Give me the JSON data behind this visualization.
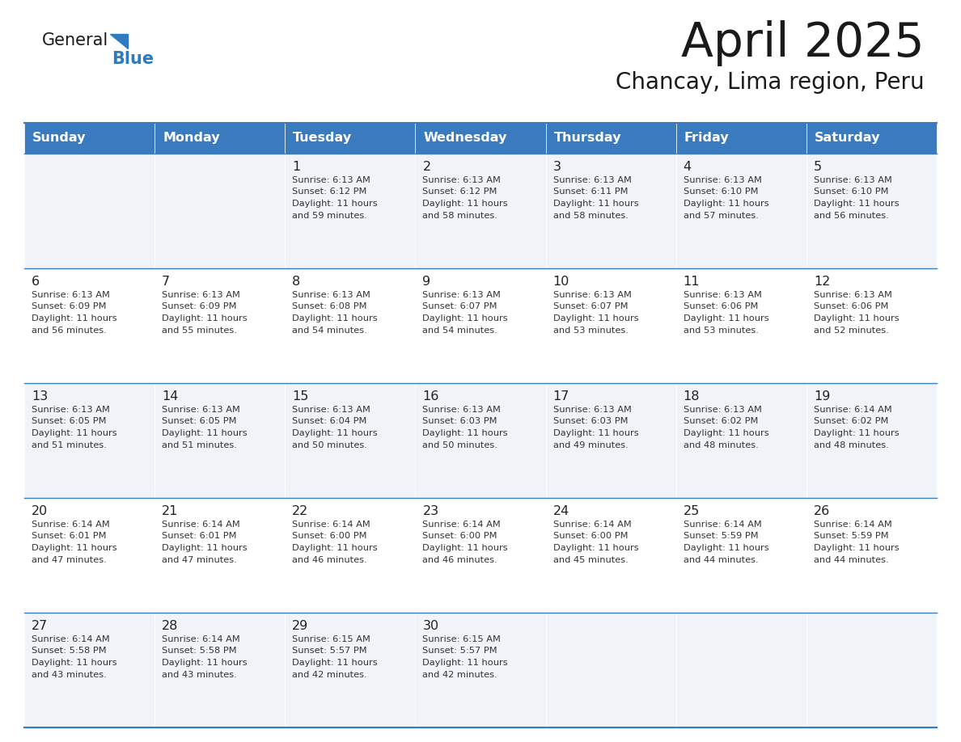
{
  "title": "April 2025",
  "subtitle": "Chancay, Lima region, Peru",
  "header_color": "#3a7bbf",
  "header_text_color": "#ffffff",
  "row_bg_even": "#f0f4f8",
  "row_bg_odd": "#ffffff",
  "border_color": "#3a7bbf",
  "text_color": "#333333",
  "day_headers": [
    "Sunday",
    "Monday",
    "Tuesday",
    "Wednesday",
    "Thursday",
    "Friday",
    "Saturday"
  ],
  "weeks": [
    [
      {
        "day": "",
        "sunrise": "",
        "sunset": "",
        "daylight": ""
      },
      {
        "day": "",
        "sunrise": "",
        "sunset": "",
        "daylight": ""
      },
      {
        "day": "1",
        "sunrise": "6:13 AM",
        "sunset": "6:12 PM",
        "daylight": "11 hours and 59 minutes."
      },
      {
        "day": "2",
        "sunrise": "6:13 AM",
        "sunset": "6:12 PM",
        "daylight": "11 hours and 58 minutes."
      },
      {
        "day": "3",
        "sunrise": "6:13 AM",
        "sunset": "6:11 PM",
        "daylight": "11 hours and 58 minutes."
      },
      {
        "day": "4",
        "sunrise": "6:13 AM",
        "sunset": "6:10 PM",
        "daylight": "11 hours and 57 minutes."
      },
      {
        "day": "5",
        "sunrise": "6:13 AM",
        "sunset": "6:10 PM",
        "daylight": "11 hours and 56 minutes."
      }
    ],
    [
      {
        "day": "6",
        "sunrise": "6:13 AM",
        "sunset": "6:09 PM",
        "daylight": "11 hours and 56 minutes."
      },
      {
        "day": "7",
        "sunrise": "6:13 AM",
        "sunset": "6:09 PM",
        "daylight": "11 hours and 55 minutes."
      },
      {
        "day": "8",
        "sunrise": "6:13 AM",
        "sunset": "6:08 PM",
        "daylight": "11 hours and 54 minutes."
      },
      {
        "day": "9",
        "sunrise": "6:13 AM",
        "sunset": "6:07 PM",
        "daylight": "11 hours and 54 minutes."
      },
      {
        "day": "10",
        "sunrise": "6:13 AM",
        "sunset": "6:07 PM",
        "daylight": "11 hours and 53 minutes."
      },
      {
        "day": "11",
        "sunrise": "6:13 AM",
        "sunset": "6:06 PM",
        "daylight": "11 hours and 53 minutes."
      },
      {
        "day": "12",
        "sunrise": "6:13 AM",
        "sunset": "6:06 PM",
        "daylight": "11 hours and 52 minutes."
      }
    ],
    [
      {
        "day": "13",
        "sunrise": "6:13 AM",
        "sunset": "6:05 PM",
        "daylight": "11 hours and 51 minutes."
      },
      {
        "day": "14",
        "sunrise": "6:13 AM",
        "sunset": "6:05 PM",
        "daylight": "11 hours and 51 minutes."
      },
      {
        "day": "15",
        "sunrise": "6:13 AM",
        "sunset": "6:04 PM",
        "daylight": "11 hours and 50 minutes."
      },
      {
        "day": "16",
        "sunrise": "6:13 AM",
        "sunset": "6:03 PM",
        "daylight": "11 hours and 50 minutes."
      },
      {
        "day": "17",
        "sunrise": "6:13 AM",
        "sunset": "6:03 PM",
        "daylight": "11 hours and 49 minutes."
      },
      {
        "day": "18",
        "sunrise": "6:13 AM",
        "sunset": "6:02 PM",
        "daylight": "11 hours and 48 minutes."
      },
      {
        "day": "19",
        "sunrise": "6:14 AM",
        "sunset": "6:02 PM",
        "daylight": "11 hours and 48 minutes."
      }
    ],
    [
      {
        "day": "20",
        "sunrise": "6:14 AM",
        "sunset": "6:01 PM",
        "daylight": "11 hours and 47 minutes."
      },
      {
        "day": "21",
        "sunrise": "6:14 AM",
        "sunset": "6:01 PM",
        "daylight": "11 hours and 47 minutes."
      },
      {
        "day": "22",
        "sunrise": "6:14 AM",
        "sunset": "6:00 PM",
        "daylight": "11 hours and 46 minutes."
      },
      {
        "day": "23",
        "sunrise": "6:14 AM",
        "sunset": "6:00 PM",
        "daylight": "11 hours and 46 minutes."
      },
      {
        "day": "24",
        "sunrise": "6:14 AM",
        "sunset": "6:00 PM",
        "daylight": "11 hours and 45 minutes."
      },
      {
        "day": "25",
        "sunrise": "6:14 AM",
        "sunset": "5:59 PM",
        "daylight": "11 hours and 44 minutes."
      },
      {
        "day": "26",
        "sunrise": "6:14 AM",
        "sunset": "5:59 PM",
        "daylight": "11 hours and 44 minutes."
      }
    ],
    [
      {
        "day": "27",
        "sunrise": "6:14 AM",
        "sunset": "5:58 PM",
        "daylight": "11 hours and 43 minutes."
      },
      {
        "day": "28",
        "sunrise": "6:14 AM",
        "sunset": "5:58 PM",
        "daylight": "11 hours and 43 minutes."
      },
      {
        "day": "29",
        "sunrise": "6:15 AM",
        "sunset": "5:57 PM",
        "daylight": "11 hours and 42 minutes."
      },
      {
        "day": "30",
        "sunrise": "6:15 AM",
        "sunset": "5:57 PM",
        "daylight": "11 hours and 42 minutes."
      },
      {
        "day": "",
        "sunrise": "",
        "sunset": "",
        "daylight": ""
      },
      {
        "day": "",
        "sunrise": "",
        "sunset": "",
        "daylight": ""
      },
      {
        "day": "",
        "sunrise": "",
        "sunset": "",
        "daylight": ""
      }
    ]
  ]
}
